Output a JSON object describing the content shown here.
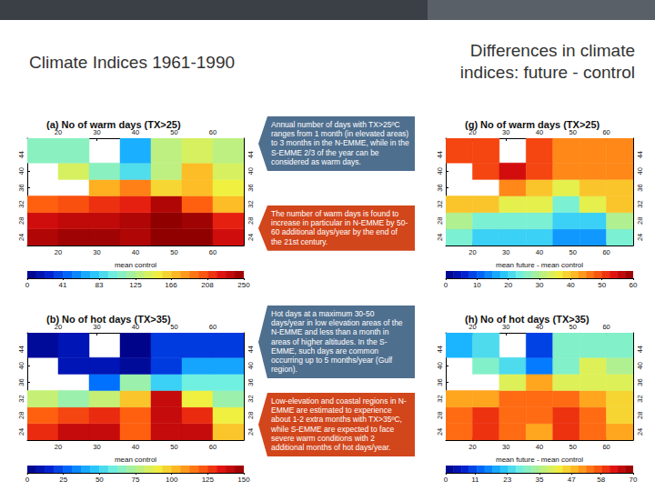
{
  "header": {
    "left_title": "Climate Indices 1961-1990",
    "right_title": "Differences in climate indices: future - control"
  },
  "notes": [
    "Annual number of days with TX>25ºC ranges from 1 month (in elevated areas) to 3 months in the N-EMME, while in the S-EMME 2/3 of the year can be considered as warm days.",
    "The number of warm days is found to increase in particular in N-EMME by 50-60 additional days/year by the end of the 21st century.",
    "Hot days at a maximum 30-50 days/year in low elevation areas of the N-EMME and less than a month in areas of higher altitudes. In the S-EMME, such days are common occurring up to 5 months/year (Gulf region).",
    "Low-elevation and coastal regions in N-EMME are estimated to experience about 1-2 extra months with TX>35ºC, while S-EMME are expected to face severe warm conditions with 2 additional months of hot days/year."
  ],
  "chart_data": [
    {
      "type": "heatmap",
      "title": "(a) No of warm days (TX>25)",
      "xlabel": "mean control",
      "xlim": [
        12,
        68
      ],
      "ylim": [
        22,
        48
      ],
      "xticks": [
        20,
        30,
        40,
        50,
        60
      ],
      "yticks": [
        24,
        28,
        32,
        36,
        40,
        44
      ],
      "x_edges": [
        12,
        20,
        28,
        36,
        44,
        52,
        60,
        68
      ],
      "y_edges": [
        22,
        26,
        30,
        34,
        38,
        42,
        48
      ],
      "cells": [
        [
          240,
          245,
          245,
          240,
          250,
          250,
          230
        ],
        [
          230,
          235,
          235,
          240,
          250,
          245,
          220
        ],
        [
          200,
          205,
          215,
          220,
          240,
          200,
          170
        ],
        [
          null,
          null,
          175,
          190,
          160,
          170,
          150
        ],
        [
          null,
          140,
          110,
          90,
          130,
          170,
          140
        ],
        [
          110,
          110,
          null,
          70,
          130,
          140,
          130
        ]
      ],
      "colorbar": {
        "range": [
          0,
          250
        ],
        "ticks": [
          0,
          41,
          83,
          125,
          166,
          208,
          250
        ]
      }
    },
    {
      "type": "heatmap",
      "title": "(b) No of hot days (TX>35)",
      "xlabel": "mean control",
      "xlim": [
        12,
        68
      ],
      "ylim": [
        22,
        48
      ],
      "xticks": [
        20,
        30,
        40,
        50,
        60
      ],
      "yticks": [
        24,
        28,
        32,
        36,
        40,
        44
      ],
      "x_edges": [
        12,
        20,
        28,
        36,
        44,
        52,
        60,
        68
      ],
      "y_edges": [
        22,
        26,
        30,
        34,
        38,
        42,
        48
      ],
      "cells": [
        [
          130,
          140,
          140,
          120,
          140,
          140,
          100
        ],
        [
          120,
          125,
          130,
          120,
          140,
          130,
          90
        ],
        [
          80,
          70,
          80,
          100,
          140,
          90,
          70
        ],
        [
          null,
          null,
          30,
          70,
          50,
          60,
          60
        ],
        [
          null,
          10,
          10,
          5,
          20,
          40,
          40
        ],
        [
          5,
          10,
          null,
          2,
          20,
          20,
          20
        ]
      ],
      "colorbar": {
        "range": [
          0,
          150
        ],
        "ticks": [
          0,
          25,
          50,
          75,
          100,
          125,
          150
        ]
      }
    },
    {
      "type": "heatmap",
      "title": "(g) No of warm days (TX>25)",
      "xlabel": "mean future - mean control",
      "xlim": [
        12,
        68
      ],
      "ylim": [
        22,
        48
      ],
      "xticks": [
        20,
        30,
        40,
        50,
        60
      ],
      "yticks": [
        24,
        28,
        32,
        36,
        40,
        44
      ],
      "x_edges": [
        12,
        20,
        28,
        36,
        44,
        52,
        60,
        68
      ],
      "y_edges": [
        22,
        26,
        30,
        34,
        38,
        42,
        48
      ],
      "cells": [
        [
          25,
          20,
          20,
          20,
          15,
          15,
          25
        ],
        [
          30,
          25,
          25,
          25,
          20,
          20,
          30
        ],
        [
          40,
          40,
          35,
          35,
          25,
          35,
          40
        ],
        [
          null,
          null,
          45,
          40,
          35,
          40,
          40
        ],
        [
          null,
          50,
          55,
          50,
          45,
          45,
          45
        ],
        [
          50,
          50,
          null,
          50,
          45,
          45,
          45
        ]
      ],
      "colorbar": {
        "range": [
          0,
          60
        ],
        "ticks": [
          0,
          10,
          20,
          30,
          40,
          50,
          60
        ]
      }
    },
    {
      "type": "heatmap",
      "title": "(h) No of hot days (TX>35)",
      "xlabel": "mean future - mean control",
      "xlim": [
        12,
        68
      ],
      "ylim": [
        22,
        48
      ],
      "xticks": [
        20,
        30,
        40,
        50,
        60
      ],
      "yticks": [
        24,
        28,
        32,
        36,
        40,
        44
      ],
      "x_edges": [
        12,
        20,
        28,
        36,
        44,
        52,
        60,
        68
      ],
      "y_edges": [
        22,
        26,
        30,
        34,
        38,
        42,
        48
      ],
      "cells": [
        [
          55,
          60,
          55,
          50,
          60,
          55,
          50
        ],
        [
          55,
          60,
          55,
          55,
          60,
          55,
          45
        ],
        [
          50,
          50,
          55,
          55,
          55,
          50,
          45
        ],
        [
          null,
          null,
          40,
          50,
          40,
          40,
          40
        ],
        [
          null,
          30,
          25,
          15,
          30,
          40,
          35
        ],
        [
          20,
          25,
          null,
          10,
          30,
          30,
          30
        ]
      ],
      "colorbar": {
        "range": [
          0,
          70
        ],
        "ticks": [
          0,
          11,
          23,
          35,
          47,
          58,
          70
        ]
      }
    }
  ]
}
